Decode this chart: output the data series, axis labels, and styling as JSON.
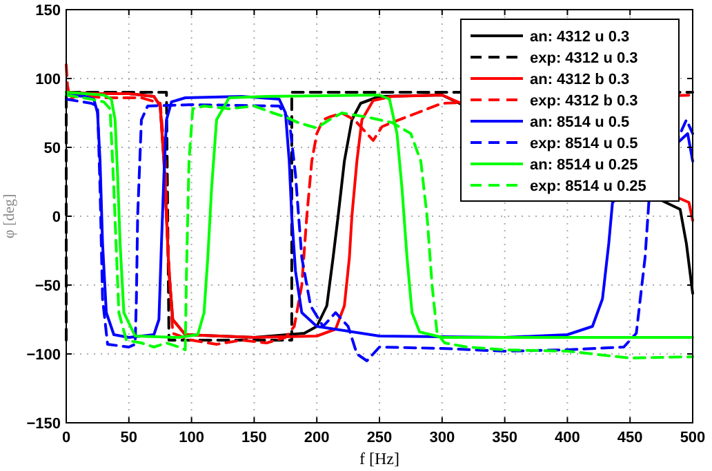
{
  "chart_data": {
    "type": "line",
    "xlabel": "f [Hz]",
    "ylabel": "φ [deg]",
    "xlim": [
      0,
      500
    ],
    "ylim": [
      -150,
      150
    ],
    "xticks": [
      0,
      50,
      100,
      150,
      200,
      250,
      300,
      350,
      400,
      450,
      500
    ],
    "yticks": [
      -150,
      -100,
      -50,
      0,
      50,
      100,
      150
    ],
    "grid": true,
    "legend": "top right",
    "series": [
      {
        "name": "an: 4312 u 0.3",
        "color": "#000000",
        "line_style": "solid",
        "x": [
          0,
          20,
          50,
          70,
          75,
          78,
          80,
          82,
          85,
          95,
          150,
          190,
          200,
          208,
          213,
          217,
          222,
          228,
          235,
          250,
          300,
          490,
          495,
          500
        ],
        "values": [
          90,
          89,
          89,
          87,
          80,
          40,
          0,
          -40,
          -75,
          -86,
          -88,
          -85,
          -80,
          -65,
          -30,
          0,
          40,
          70,
          82,
          87,
          88,
          5,
          -20,
          -56
        ]
      },
      {
        "name": "exp: 4312 u 0.3",
        "color": "#000000",
        "line_style": "dashed",
        "x": [
          0,
          0,
          80,
          82,
          180,
          180,
          500
        ],
        "values": [
          -90,
          90,
          90,
          -90,
          -90,
          90,
          90
        ]
      },
      {
        "name": "an: 4312 b 0.3",
        "color": "#ff0000",
        "line_style": "solid",
        "x": [
          0,
          20,
          50,
          70,
          75,
          78,
          80,
          82,
          85,
          95,
          150,
          200,
          215,
          222,
          226,
          228,
          232,
          236,
          245,
          260,
          300,
          497,
          500
        ],
        "values": [
          90,
          89,
          89,
          87,
          80,
          40,
          0,
          -40,
          -75,
          -86,
          -88,
          -87,
          -82,
          -65,
          -30,
          0,
          40,
          70,
          84,
          87,
          88,
          10,
          -3
        ]
      },
      {
        "name": "exp: 4312 b 0.3",
        "color": "#ff0000",
        "line_style": "dashed",
        "x": [
          0,
          1,
          3,
          10,
          30,
          60,
          75,
          79,
          81,
          85,
          100,
          120,
          140,
          160,
          175,
          182,
          188,
          192,
          196,
          200,
          205,
          210,
          220,
          230,
          240,
          245,
          252,
          260,
          280,
          300,
          500
        ],
        "values": [
          110,
          95,
          85,
          88,
          86,
          86,
          82,
          40,
          -20,
          -85,
          -90,
          -93,
          -90,
          -92,
          -88,
          -80,
          -50,
          0,
          40,
          60,
          70,
          72,
          75,
          70,
          60,
          55,
          65,
          68,
          75,
          82,
          88
        ]
      },
      {
        "name": "an: 8514 u 0.5",
        "color": "#0000ff",
        "line_style": "solid",
        "x": [
          0,
          15,
          22,
          25,
          27,
          29,
          32,
          38,
          50,
          70,
          74,
          76,
          78,
          80,
          84,
          95,
          140,
          170,
          175,
          178,
          180,
          183,
          188,
          200,
          250,
          350,
          400,
          420,
          428,
          433,
          436,
          496,
          500
        ],
        "values": [
          88,
          87,
          85,
          75,
          40,
          -20,
          -70,
          -86,
          -88,
          -86,
          -75,
          -20,
          30,
          70,
          83,
          86,
          87,
          85,
          75,
          40,
          0,
          -40,
          -70,
          -80,
          -87,
          -88,
          -86,
          -80,
          -60,
          -20,
          10,
          60,
          40
        ]
      },
      {
        "name": "exp: 8514 u 0.5",
        "color": "#0000ff",
        "line_style": "dashed",
        "x": [
          0,
          20,
          25,
          27,
          29,
          33,
          50,
          55,
          56,
          57,
          60,
          65,
          100,
          170,
          178,
          183,
          188,
          195,
          205,
          215,
          225,
          232,
          240,
          250,
          300,
          350,
          400,
          445,
          455,
          462,
          465,
          495,
          500
        ],
        "values": [
          85,
          82,
          80,
          20,
          -60,
          -93,
          -95,
          -93,
          -60,
          0,
          70,
          80,
          81,
          80,
          70,
          30,
          -30,
          -65,
          -80,
          -70,
          -80,
          -100,
          -105,
          -95,
          -96,
          -98,
          -97,
          -95,
          -85,
          -30,
          10,
          70,
          60
        ]
      },
      {
        "name": "an: 8514 u 0.25",
        "color": "#00ff00",
        "line_style": "solid",
        "x": [
          0,
          30,
          36,
          39,
          41,
          43,
          46,
          55,
          90,
          105,
          110,
          113,
          116,
          120,
          130,
          160,
          250,
          258,
          264,
          268,
          272,
          276,
          282,
          300,
          400,
          500
        ],
        "values": [
          90,
          88,
          85,
          70,
          30,
          -20,
          -70,
          -87,
          -88,
          -86,
          -70,
          -30,
          20,
          70,
          86,
          87,
          88,
          85,
          60,
          20,
          -30,
          -70,
          -84,
          -88,
          -88,
          -88
        ]
      },
      {
        "name": "exp: 8514 u 0.25",
        "color": "#00ff00",
        "line_style": "dashed",
        "x": [
          0,
          20,
          30,
          35,
          38,
          42,
          48,
          60,
          70,
          80,
          90,
          95,
          96,
          98,
          101,
          110,
          130,
          150,
          165,
          175,
          185,
          200,
          210,
          220,
          240,
          260,
          275,
          283,
          288,
          292,
          296,
          302,
          320,
          350,
          400,
          450,
          500
        ],
        "values": [
          88,
          85,
          83,
          78,
          20,
          -70,
          -90,
          -92,
          -95,
          -92,
          -95,
          -97,
          -40,
          40,
          78,
          80,
          78,
          80,
          75,
          72,
          68,
          64,
          70,
          75,
          72,
          68,
          60,
          40,
          0,
          -50,
          -85,
          -92,
          -95,
          -97,
          -98,
          -103,
          -102
        ]
      }
    ]
  }
}
